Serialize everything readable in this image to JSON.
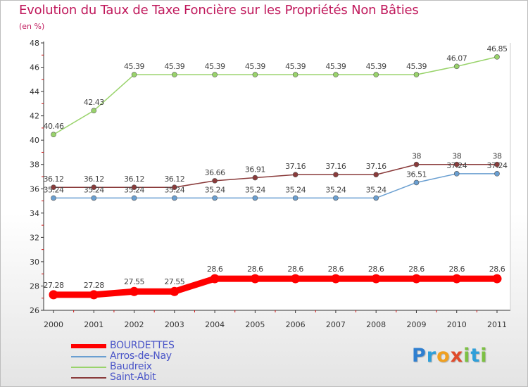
{
  "page": {
    "title": "Evolution du Taux de Taxe Foncière sur les Propriétés Non Bâties",
    "unit_label": "(en %)",
    "logo": {
      "text": "Proxiti",
      "letters": [
        "P",
        "r",
        "o",
        "x",
        "i",
        "t",
        "i"
      ]
    }
  },
  "chart_data": {
    "type": "line",
    "title": "Evolution du Taux de Taxe Foncière sur les Propriétés Non Bâties",
    "ylabel": "(en %)",
    "xlabel": "",
    "x": [
      "2000",
      "2001",
      "2002",
      "2003",
      "2004",
      "2005",
      "2006",
      "2007",
      "2008",
      "2009",
      "2010",
      "2011"
    ],
    "ylim": [
      26,
      48
    ],
    "yticks": [
      26,
      28,
      30,
      32,
      34,
      36,
      38,
      40,
      42,
      44,
      46,
      48
    ],
    "grid": false,
    "legend_position": "bottom-left",
    "series": [
      {
        "name": "BOURDETTES",
        "color": "#ff0000",
        "values": [
          27.28,
          27.28,
          27.55,
          27.55,
          28.6,
          28.6,
          28.6,
          28.6,
          28.6,
          28.6,
          28.6,
          28.6
        ],
        "labels": [
          "27.28",
          "27.28",
          "27.55",
          "27.55",
          "28.6",
          "28.6",
          "28.6",
          "28.6",
          "28.6",
          "28.6",
          "28.6",
          "28.6"
        ]
      },
      {
        "name": "Arros-de-Nay",
        "color": "#6a9fd1",
        "values": [
          35.24,
          35.24,
          35.24,
          35.24,
          35.24,
          35.24,
          35.24,
          35.24,
          35.24,
          36.51,
          37.24,
          37.24
        ],
        "labels": [
          "35.24",
          "35.24",
          "35.24",
          "35.24",
          "35.24",
          "35.24",
          "35.24",
          "35.24",
          "35.24",
          "36.51",
          "37.24",
          "37.24"
        ]
      },
      {
        "name": "Baudreix",
        "color": "#99d36b",
        "values": [
          40.46,
          42.43,
          45.39,
          45.39,
          45.39,
          45.39,
          45.39,
          45.39,
          45.39,
          45.39,
          46.07,
          46.85
        ],
        "labels": [
          "40.46",
          "42.43",
          "45.39",
          "45.39",
          "45.39",
          "45.39",
          "45.39",
          "45.39",
          "45.39",
          "45.39",
          "46.07",
          "46.85"
        ]
      },
      {
        "name": "Saint-Abit",
        "color": "#8a3b3b",
        "values": [
          36.12,
          36.12,
          36.12,
          36.12,
          36.66,
          36.91,
          37.16,
          37.16,
          37.16,
          38,
          38,
          38
        ],
        "labels": [
          "36.12",
          "36.12",
          "36.12",
          "36.12",
          "36.66",
          "36.91",
          "37.16",
          "37.16",
          "37.16",
          "38",
          "38",
          "38"
        ]
      }
    ]
  }
}
